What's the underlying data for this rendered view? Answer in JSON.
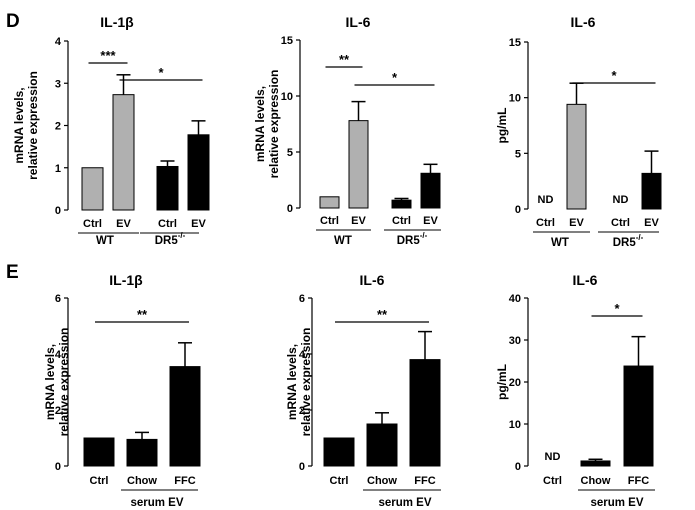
{
  "panels": [
    {
      "letter": "D"
    },
    {
      "letter": "E"
    }
  ],
  "chart_data": [
    {
      "type": "bar",
      "panel": "D",
      "title": "IL-1β",
      "ylabel": "mRNA levels, relative expression",
      "ylim": [
        0,
        4
      ],
      "yticks": [
        "0",
        "1",
        "2",
        "3",
        "4"
      ],
      "categories": [
        "Ctrl",
        "EV",
        "Ctrl",
        "EV"
      ],
      "values": [
        1.0,
        2.73,
        1.03,
        1.78
      ],
      "errors": [
        0,
        0.47,
        0.13,
        0.33
      ],
      "colors": [
        "#b0b0b0",
        "#b0b0b0",
        "#000000",
        "#000000"
      ],
      "labels": [
        "",
        "",
        "",
        ""
      ],
      "groups": [
        {
          "label": "WT"
        },
        {
          "label": "DR5",
          "sup": "-/-"
        }
      ],
      "significance": [
        {
          "text": "***"
        },
        {
          "text": "*"
        }
      ]
    },
    {
      "type": "bar",
      "panel": "D",
      "title": "IL-6",
      "ylabel": "mRNA levels, relative expression",
      "ylim": [
        0,
        15
      ],
      "yticks": [
        "0",
        "5",
        "10",
        "15"
      ],
      "categories": [
        "Ctrl",
        "EV",
        "Ctrl",
        "EV"
      ],
      "values": [
        1.0,
        7.8,
        0.7,
        3.1
      ],
      "errors": [
        0,
        1.7,
        0.15,
        0.8
      ],
      "colors": [
        "#b0b0b0",
        "#b0b0b0",
        "#000000",
        "#000000"
      ],
      "labels": [
        "",
        "",
        "",
        ""
      ],
      "groups": [
        {
          "label": "WT"
        },
        {
          "label": "DR5",
          "sup": "-/-"
        }
      ],
      "significance": [
        {
          "text": "**"
        },
        {
          "text": "*"
        }
      ]
    },
    {
      "type": "bar",
      "panel": "D",
      "title": "IL-6",
      "ylabel": "pg/mL",
      "ylim": [
        0,
        15
      ],
      "yticks": [
        "0",
        "5",
        "10",
        "15"
      ],
      "categories": [
        "Ctrl",
        "EV",
        "Ctrl",
        "EV"
      ],
      "values": [
        0,
        9.4,
        0,
        3.2
      ],
      "errors": [
        0,
        1.9,
        0,
        2.0
      ],
      "colors": [
        "#b0b0b0",
        "#b0b0b0",
        "#000000",
        "#000000"
      ],
      "labels": [
        "ND",
        "",
        "ND",
        ""
      ],
      "groups": [
        {
          "label": "WT"
        },
        {
          "label": "DR5",
          "sup": "-/-"
        }
      ],
      "significance": [
        {
          "text": "*"
        }
      ]
    },
    {
      "type": "bar",
      "panel": "E",
      "title": "IL-1β",
      "ylabel": "mRNA levels, relative expression",
      "ylim": [
        0,
        6
      ],
      "yticks": [
        "0",
        "2",
        "4",
        "6"
      ],
      "categories": [
        "Ctrl",
        "Chow",
        "FFC"
      ],
      "values": [
        1.0,
        0.95,
        3.55
      ],
      "errors": [
        0,
        0.25,
        0.85
      ],
      "colors": [
        "#000000",
        "#000000",
        "#000000"
      ],
      "labels": [
        "",
        "",
        ""
      ],
      "groups": [
        {
          "label": "serum EV"
        }
      ],
      "significance": [
        {
          "text": "**"
        }
      ]
    },
    {
      "type": "bar",
      "panel": "E",
      "title": "IL-6",
      "ylabel": "mRNA levels, relative expression",
      "ylim": [
        0,
        6
      ],
      "yticks": [
        "0",
        "2",
        "4",
        "6"
      ],
      "categories": [
        "Ctrl",
        "Chow",
        "FFC"
      ],
      "values": [
        1.0,
        1.5,
        3.8
      ],
      "errors": [
        0,
        0.4,
        1.0
      ],
      "colors": [
        "#000000",
        "#000000",
        "#000000"
      ],
      "labels": [
        "",
        "",
        ""
      ],
      "groups": [
        {
          "label": "serum EV"
        }
      ],
      "significance": [
        {
          "text": "**"
        }
      ]
    },
    {
      "type": "bar",
      "panel": "E",
      "title": "IL-6",
      "ylabel": "pg/mL",
      "ylim": [
        0,
        40
      ],
      "yticks": [
        "0",
        "10",
        "20",
        "30",
        "40"
      ],
      "categories": [
        "Ctrl",
        "Chow",
        "FFC"
      ],
      "values": [
        0,
        1.2,
        23.8
      ],
      "errors": [
        0,
        0.4,
        7.0
      ],
      "colors": [
        "#000000",
        "#000000",
        "#000000"
      ],
      "labels": [
        "ND",
        "",
        ""
      ],
      "groups": [
        {
          "label": "serum EV"
        }
      ],
      "significance": [
        {
          "text": "*"
        }
      ]
    }
  ]
}
